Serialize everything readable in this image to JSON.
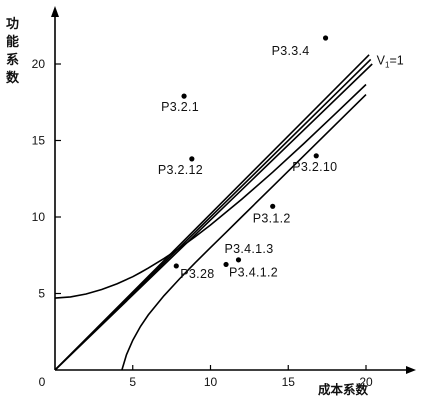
{
  "chart_data": {
    "type": "scatter",
    "title": "",
    "xlabel": "成本系数",
    "ylabel": "功能系数",
    "xlim": [
      0,
      21.5
    ],
    "ylim": [
      0,
      23
    ],
    "x_ticks": [
      0,
      5,
      10,
      15,
      20
    ],
    "y_ticks": [
      5,
      10,
      15,
      20
    ],
    "grid": false,
    "points": [
      {
        "label": "P3.3.4",
        "x": 17.4,
        "y": 21.7
      },
      {
        "label": "P3.2.1",
        "x": 8.3,
        "y": 17.9
      },
      {
        "label": "P3.2.12",
        "x": 8.8,
        "y": 13.8
      },
      {
        "label": "P3.2.10",
        "x": 16.8,
        "y": 14.0
      },
      {
        "label": "P3.1.2",
        "x": 14.0,
        "y": 10.7
      },
      {
        "label": "P3.4.1.3",
        "x": 11.8,
        "y": 7.2
      },
      {
        "label": "P3.28",
        "x": 7.8,
        "y": 6.8
      },
      {
        "label": "P3.4.1.2",
        "x": 11.0,
        "y": 6.9
      }
    ],
    "reference_line": {
      "label": "V",
      "subscript": "1",
      "suffix": "=1",
      "x": [
        0,
        20.3
      ],
      "y": [
        0,
        20.3
      ]
    },
    "band_lines": [
      {
        "x": [
          0,
          20.2
        ],
        "y": [
          0,
          20.6
        ]
      },
      {
        "x": [
          0,
          20.4
        ],
        "y": [
          0,
          20.0
        ]
      }
    ],
    "upper_curve": {
      "x": [
        0,
        1,
        2,
        3,
        4,
        5,
        5.5,
        6,
        7,
        8,
        9,
        10,
        12,
        14,
        16,
        18,
        20
      ],
      "y": [
        4.7,
        4.78,
        4.97,
        5.26,
        5.64,
        6.1,
        6.37,
        6.66,
        7.28,
        7.96,
        8.7,
        9.48,
        11.15,
        12.93,
        14.8,
        16.72,
        18.66
      ]
    },
    "lower_curve": {
      "x": [
        4.3,
        4.6,
        5.0,
        5.5,
        6.0,
        7.0,
        8.0,
        9.0,
        10.0,
        11.0,
        12.0,
        14.0,
        16.0,
        18.0,
        20.0
      ],
      "y": [
        0.0,
        1.0,
        1.95,
        2.85,
        3.6,
        4.85,
        5.95,
        7.0,
        8.0,
        9.0,
        10.0,
        12.0,
        14.0,
        16.0,
        18.0
      ]
    }
  }
}
